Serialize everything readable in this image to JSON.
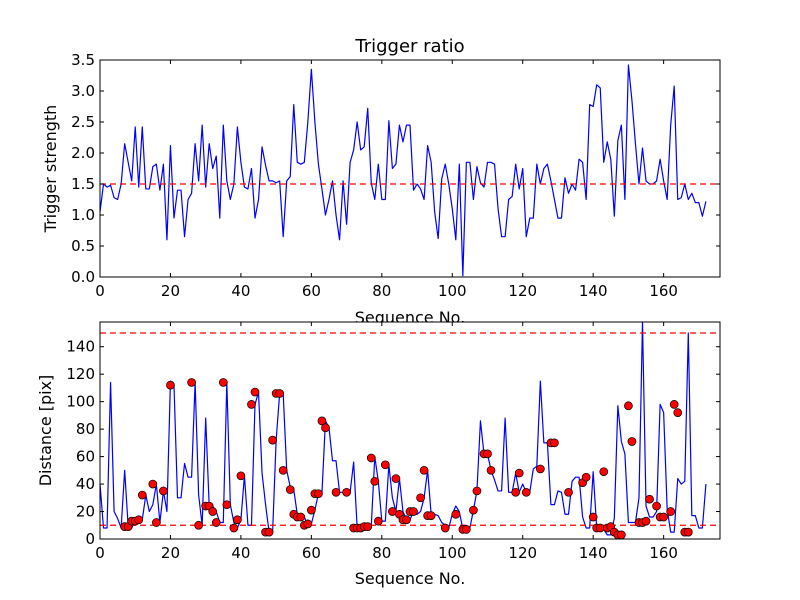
{
  "chart_data": [
    {
      "type": "line",
      "title": "Trigger ratio",
      "xlabel": "Sequence No.",
      "ylabel": "Trigger strength",
      "xlim": [
        0,
        176
      ],
      "ylim": [
        0,
        3.5
      ],
      "xticks": [
        0,
        20,
        40,
        60,
        80,
        100,
        120,
        140,
        160
      ],
      "yticks": [
        0.0,
        0.5,
        1.0,
        1.5,
        2.0,
        2.5,
        3.0,
        3.5
      ],
      "ytick_labels": [
        "0.0",
        "0.5",
        "1.0",
        "1.5",
        "2.0",
        "2.5",
        "3.0",
        "3.5"
      ],
      "series_color": "#0000ff",
      "hlines": [
        {
          "y": 1.5,
          "color": "#ff0000",
          "style": "dashed"
        }
      ],
      "series": [
        {
          "values": [
            1.05,
            1.5,
            1.45,
            1.48,
            1.28,
            1.25,
            1.5,
            2.15,
            1.85,
            1.55,
            2.42,
            1.45,
            2.42,
            1.42,
            1.42,
            1.78,
            1.82,
            1.4,
            1.82,
            0.6,
            2.12,
            0.95,
            1.4,
            1.4,
            0.65,
            1.25,
            1.35,
            2.15,
            1.55,
            2.45,
            1.45,
            2.15,
            1.75,
            1.95,
            0.95,
            2.45,
            1.55,
            1.25,
            1.5,
            2.42,
            1.85,
            1.45,
            1.42,
            1.75,
            0.95,
            1.25,
            2.1,
            1.8,
            1.55,
            1.55,
            1.52,
            1.55,
            0.65,
            1.55,
            1.62,
            2.78,
            1.85,
            1.82,
            1.85,
            2.5,
            3.35,
            2.5,
            1.82,
            1.42,
            1.0,
            1.25,
            1.55,
            1.0,
            0.6,
            1.55,
            0.85,
            1.85,
            2.05,
            2.5,
            2.05,
            2.1,
            2.72,
            1.52,
            1.25,
            1.82,
            1.25,
            1.25,
            2.52,
            1.75,
            1.82,
            2.45,
            2.18,
            2.45,
            2.45,
            1.4,
            1.5,
            1.42,
            1.25,
            2.12,
            1.85,
            1.05,
            0.62,
            1.58,
            1.82,
            1.5,
            1.1,
            0.6,
            1.82,
            0.02,
            1.85,
            1.85,
            1.25,
            1.78,
            1.52,
            1.45,
            1.85,
            1.85,
            1.82,
            1.1,
            0.65,
            0.65,
            1.25,
            1.3,
            1.82,
            1.42,
            1.75,
            0.65,
            0.95,
            0.95,
            1.82,
            1.5,
            1.75,
            1.82,
            1.55,
            1.25,
            0.95,
            0.95,
            1.6,
            1.35,
            1.5,
            1.4,
            1.9,
            1.85,
            1.25,
            2.78,
            2.75,
            3.1,
            3.05,
            1.85,
            2.18,
            1.9,
            0.98,
            2.2,
            2.45,
            1.25,
            3.42,
            2.85,
            2.15,
            1.5,
            2.08,
            1.55,
            1.5,
            1.5,
            1.55,
            1.9,
            1.55,
            1.25,
            2.45,
            3.08,
            1.25,
            1.28,
            1.5,
            1.25,
            1.35,
            1.2,
            1.2,
            0.98,
            1.22
          ]
        }
      ]
    },
    {
      "type": "line",
      "title": "",
      "xlabel": "Sequence No.",
      "ylabel": "Distance [pix]",
      "xlim": [
        0,
        176
      ],
      "ylim": [
        0,
        158
      ],
      "xticks": [
        0,
        20,
        40,
        60,
        80,
        100,
        120,
        140,
        160
      ],
      "yticks": [
        0,
        20,
        40,
        60,
        80,
        100,
        120,
        140
      ],
      "ytick_labels": [
        "0",
        "20",
        "40",
        "60",
        "80",
        "100",
        "120",
        "140"
      ],
      "series_color": "#0000ff",
      "marker_color": "#ff0000",
      "hlines": [
        {
          "y": 150,
          "color": "#ff0000",
          "style": "dashed"
        },
        {
          "y": 10,
          "color": "#ff0000",
          "style": "dashed"
        }
      ],
      "series": [
        {
          "values": [
            40,
            8,
            8,
            114,
            20,
            15,
            8,
            50,
            9,
            8,
            13,
            14,
            14,
            32,
            20,
            25,
            40,
            12,
            35,
            20,
            115,
            112,
            30,
            30,
            55,
            45,
            45,
            114,
            32,
            10,
            88,
            24,
            24,
            20,
            12,
            12,
            114,
            25,
            12,
            8,
            14,
            46,
            10,
            10,
            98,
            107,
            48,
            25,
            5,
            5,
            72,
            106,
            106,
            50,
            38,
            36,
            18,
            15,
            16,
            10,
            11,
            21,
            33,
            33,
            86,
            81,
            57,
            57,
            34,
            34,
            32,
            34,
            56,
            8,
            8,
            8,
            9,
            9,
            60,
            42,
            13,
            13,
            54,
            30,
            20,
            44,
            20,
            14,
            14,
            20,
            18,
            20,
            30,
            50,
            18,
            18,
            17,
            12,
            10,
            8,
            18,
            24,
            20,
            7,
            7,
            8,
            21,
            35,
            86,
            62,
            62,
            50,
            43,
            35,
            35,
            88,
            34,
            34,
            48,
            34,
            40,
            34,
            34,
            51,
            53,
            115,
            70,
            70,
            25,
            25,
            35,
            34,
            18,
            18,
            42,
            45,
            45,
            16,
            8,
            8,
            49,
            8,
            9,
            7,
            3,
            3,
            15,
            97,
            71,
            62,
            12,
            12,
            12,
            30,
            158,
            24,
            16,
            16,
            20,
            98,
            92,
            22,
            5,
            5,
            44,
            40,
            42,
            150,
            17,
            17,
            8,
            8,
            40
          ]
        }
      ],
      "marked_points": [
        {
          "x": 7,
          "y": 9
        },
        {
          "x": 8,
          "y": 9
        },
        {
          "x": 9,
          "y": 13
        },
        {
          "x": 10,
          "y": 13
        },
        {
          "x": 11,
          "y": 14
        },
        {
          "x": 12,
          "y": 32
        },
        {
          "x": 15,
          "y": 40
        },
        {
          "x": 16,
          "y": 12
        },
        {
          "x": 18,
          "y": 35
        },
        {
          "x": 20,
          "y": 112
        },
        {
          "x": 26,
          "y": 114
        },
        {
          "x": 28,
          "y": 10
        },
        {
          "x": 30,
          "y": 24
        },
        {
          "x": 31,
          "y": 24
        },
        {
          "x": 32,
          "y": 20
        },
        {
          "x": 33,
          "y": 12
        },
        {
          "x": 35,
          "y": 114
        },
        {
          "x": 36,
          "y": 25
        },
        {
          "x": 38,
          "y": 8
        },
        {
          "x": 39,
          "y": 14
        },
        {
          "x": 40,
          "y": 46
        },
        {
          "x": 43,
          "y": 98
        },
        {
          "x": 44,
          "y": 107
        },
        {
          "x": 47,
          "y": 5
        },
        {
          "x": 48,
          "y": 5
        },
        {
          "x": 49,
          "y": 72
        },
        {
          "x": 50,
          "y": 106
        },
        {
          "x": 51,
          "y": 106
        },
        {
          "x": 52,
          "y": 50
        },
        {
          "x": 54,
          "y": 36
        },
        {
          "x": 55,
          "y": 18
        },
        {
          "x": 56,
          "y": 16
        },
        {
          "x": 57,
          "y": 16
        },
        {
          "x": 58,
          "y": 10
        },
        {
          "x": 59,
          "y": 11
        },
        {
          "x": 60,
          "y": 21
        },
        {
          "x": 61,
          "y": 33
        },
        {
          "x": 62,
          "y": 33
        },
        {
          "x": 63,
          "y": 86
        },
        {
          "x": 64,
          "y": 81
        },
        {
          "x": 67,
          "y": 34
        },
        {
          "x": 70,
          "y": 34
        },
        {
          "x": 72,
          "y": 8
        },
        {
          "x": 73,
          "y": 8
        },
        {
          "x": 74,
          "y": 8
        },
        {
          "x": 75,
          "y": 9
        },
        {
          "x": 76,
          "y": 9
        },
        {
          "x": 77,
          "y": 59
        },
        {
          "x": 78,
          "y": 42
        },
        {
          "x": 79,
          "y": 13
        },
        {
          "x": 81,
          "y": 54
        },
        {
          "x": 83,
          "y": 20
        },
        {
          "x": 84,
          "y": 44
        },
        {
          "x": 85,
          "y": 18
        },
        {
          "x": 86,
          "y": 14
        },
        {
          "x": 87,
          "y": 14
        },
        {
          "x": 88,
          "y": 20
        },
        {
          "x": 89,
          "y": 20
        },
        {
          "x": 91,
          "y": 30
        },
        {
          "x": 92,
          "y": 50
        },
        {
          "x": 93,
          "y": 17
        },
        {
          "x": 94,
          "y": 17
        },
        {
          "x": 98,
          "y": 8
        },
        {
          "x": 101,
          "y": 18
        },
        {
          "x": 103,
          "y": 7
        },
        {
          "x": 104,
          "y": 7
        },
        {
          "x": 106,
          "y": 21
        },
        {
          "x": 107,
          "y": 35
        },
        {
          "x": 109,
          "y": 62
        },
        {
          "x": 110,
          "y": 62
        },
        {
          "x": 111,
          "y": 50
        },
        {
          "x": 118,
          "y": 34
        },
        {
          "x": 119,
          "y": 48
        },
        {
          "x": 121,
          "y": 34
        },
        {
          "x": 125,
          "y": 51
        },
        {
          "x": 128,
          "y": 70
        },
        {
          "x": 129,
          "y": 70
        },
        {
          "x": 133,
          "y": 34
        },
        {
          "x": 137,
          "y": 41
        },
        {
          "x": 138,
          "y": 45
        },
        {
          "x": 140,
          "y": 16
        },
        {
          "x": 141,
          "y": 8
        },
        {
          "x": 142,
          "y": 8
        },
        {
          "x": 143,
          "y": 49
        },
        {
          "x": 144,
          "y": 8
        },
        {
          "x": 145,
          "y": 9
        },
        {
          "x": 146,
          "y": 5
        },
        {
          "x": 147,
          "y": 3
        },
        {
          "x": 148,
          "y": 3
        },
        {
          "x": 150,
          "y": 97
        },
        {
          "x": 151,
          "y": 71
        },
        {
          "x": 153,
          "y": 12
        },
        {
          "x": 154,
          "y": 12
        },
        {
          "x": 155,
          "y": 13
        },
        {
          "x": 156,
          "y": 29
        },
        {
          "x": 158,
          "y": 24
        },
        {
          "x": 159,
          "y": 16
        },
        {
          "x": 160,
          "y": 16
        },
        {
          "x": 162,
          "y": 20
        },
        {
          "x": 163,
          "y": 98
        },
        {
          "x": 164,
          "y": 92
        },
        {
          "x": 166,
          "y": 5
        },
        {
          "x": 167,
          "y": 5
        }
      ]
    }
  ]
}
